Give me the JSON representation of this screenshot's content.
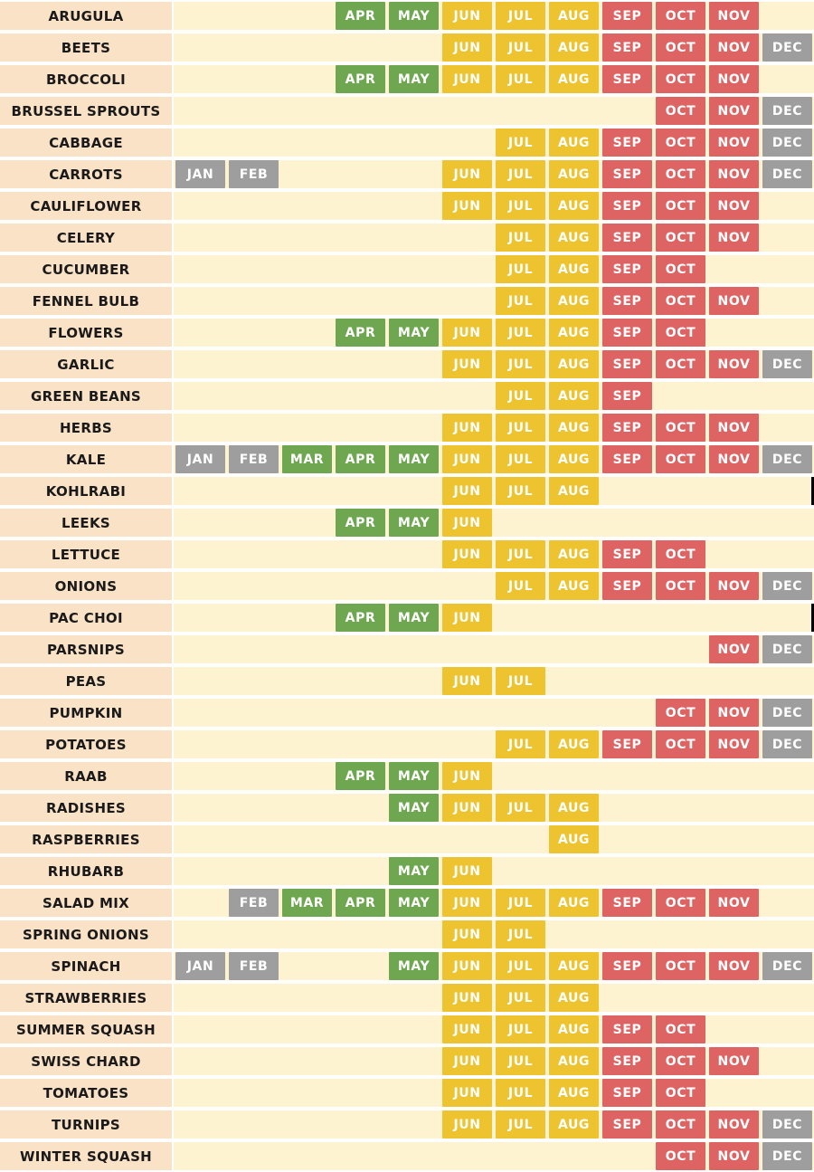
{
  "palette": {
    "page_bg": "#FFFFFF",
    "label_bg": "#FAE2C7",
    "label_text": "#1A1A1A",
    "track_bg": "#FDF3D1",
    "chip_text": "#FFFFFF",
    "winter": "#9E9E9E",
    "spring": "#6FA750",
    "summer": "#EDC32F",
    "fall": "#DE6464",
    "edge_mark": "#000000"
  },
  "chart_data": {
    "type": "heatmap",
    "columns": [
      "JAN",
      "FEB",
      "MAR",
      "APR",
      "MAY",
      "JUN",
      "JUL",
      "AUG",
      "SEP",
      "OCT",
      "NOV",
      "DEC"
    ],
    "column_season": {
      "JAN": "winter",
      "FEB": "winter",
      "MAR": "spring",
      "APR": "spring",
      "MAY": "spring",
      "JUN": "summer",
      "JUL": "summer",
      "AUG": "summer",
      "SEP": "fall",
      "OCT": "fall",
      "NOV": "fall",
      "DEC": "winter"
    },
    "legend_position": "none",
    "grid": false,
    "rows": [
      {
        "label": "ARUGULA",
        "months": [
          "APR",
          "MAY",
          "JUN",
          "JUL",
          "AUG",
          "SEP",
          "OCT",
          "NOV"
        ]
      },
      {
        "label": "BEETS",
        "months": [
          "JUN",
          "JUL",
          "AUG",
          "SEP",
          "OCT",
          "NOV",
          "DEC"
        ]
      },
      {
        "label": "BROCCOLI",
        "months": [
          "APR",
          "MAY",
          "JUN",
          "JUL",
          "AUG",
          "SEP",
          "OCT",
          "NOV"
        ]
      },
      {
        "label": "BRUSSEL SPROUTS",
        "months": [
          "OCT",
          "NOV",
          "DEC"
        ]
      },
      {
        "label": "CABBAGE",
        "months": [
          "JUL",
          "AUG",
          "SEP",
          "OCT",
          "NOV",
          "DEC"
        ]
      },
      {
        "label": "CARROTS",
        "months": [
          "JAN",
          "FEB",
          "JUN",
          "JUL",
          "AUG",
          "SEP",
          "OCT",
          "NOV",
          "DEC"
        ]
      },
      {
        "label": "CAULIFLOWER",
        "months": [
          "JUN",
          "JUL",
          "AUG",
          "SEP",
          "OCT",
          "NOV"
        ]
      },
      {
        "label": "CELERY",
        "months": [
          "JUL",
          "AUG",
          "SEP",
          "OCT",
          "NOV"
        ]
      },
      {
        "label": "CUCUMBER",
        "months": [
          "JUL",
          "AUG",
          "SEP",
          "OCT"
        ]
      },
      {
        "label": "FENNEL BULB",
        "months": [
          "JUL",
          "AUG",
          "SEP",
          "OCT",
          "NOV"
        ]
      },
      {
        "label": "FLOWERS",
        "months": [
          "APR",
          "MAY",
          "JUN",
          "JUL",
          "AUG",
          "SEP",
          "OCT"
        ]
      },
      {
        "label": "GARLIC",
        "months": [
          "JUN",
          "JUL",
          "AUG",
          "SEP",
          "OCT",
          "NOV",
          "DEC"
        ]
      },
      {
        "label": "GREEN BEANS",
        "months": [
          "JUL",
          "AUG",
          "SEP"
        ]
      },
      {
        "label": "HERBS",
        "months": [
          "JUN",
          "JUL",
          "AUG",
          "SEP",
          "OCT",
          "NOV"
        ]
      },
      {
        "label": "KALE",
        "months": [
          "JAN",
          "FEB",
          "MAR",
          "APR",
          "MAY",
          "JUN",
          "JUL",
          "AUG",
          "SEP",
          "OCT",
          "NOV",
          "DEC"
        ]
      },
      {
        "label": "KOHLRABI",
        "months": [
          "JUN",
          "JUL",
          "AUG"
        ]
      },
      {
        "label": "LEEKS",
        "months": [
          "APR",
          "MAY",
          "JUN"
        ]
      },
      {
        "label": "LETTUCE",
        "months": [
          "JUN",
          "JUL",
          "AUG",
          "SEP",
          "OCT"
        ]
      },
      {
        "label": "ONIONS",
        "months": [
          "JUL",
          "AUG",
          "SEP",
          "OCT",
          "NOV",
          "DEC"
        ]
      },
      {
        "label": "PAC CHOI",
        "months": [
          "APR",
          "MAY",
          "JUN"
        ]
      },
      {
        "label": "PARSNIPS",
        "months": [
          "NOV",
          "DEC"
        ]
      },
      {
        "label": "PEAS",
        "months": [
          "JUN",
          "JUL"
        ]
      },
      {
        "label": "PUMPKIN",
        "months": [
          "OCT",
          "NOV",
          "DEC"
        ]
      },
      {
        "label": "POTATOES",
        "months": [
          "JUL",
          "AUG",
          "SEP",
          "OCT",
          "NOV",
          "DEC"
        ]
      },
      {
        "label": "RAAB",
        "months": [
          "APR",
          "MAY",
          "JUN"
        ]
      },
      {
        "label": "RADISHES",
        "months": [
          "MAY",
          "JUN",
          "JUL",
          "AUG"
        ]
      },
      {
        "label": "RASPBERRIES",
        "months": [
          "AUG"
        ]
      },
      {
        "label": "RHUBARB",
        "months": [
          "MAY",
          "JUN"
        ]
      },
      {
        "label": "SALAD MIX",
        "months": [
          "FEB",
          "MAR",
          "APR",
          "MAY",
          "JUN",
          "JUL",
          "AUG",
          "SEP",
          "OCT",
          "NOV"
        ]
      },
      {
        "label": "SPRING ONIONS",
        "months": [
          "JUN",
          "JUL"
        ]
      },
      {
        "label": "SPINACH",
        "months": [
          "JAN",
          "FEB",
          "MAY",
          "JUN",
          "JUL",
          "AUG",
          "SEP",
          "OCT",
          "NOV",
          "DEC"
        ]
      },
      {
        "label": "STRAWBERRIES",
        "months": [
          "JUN",
          "JUL",
          "AUG"
        ]
      },
      {
        "label": "SUMMER SQUASH",
        "months": [
          "JUN",
          "JUL",
          "AUG",
          "SEP",
          "OCT"
        ]
      },
      {
        "label": "SWISS CHARD",
        "months": [
          "JUN",
          "JUL",
          "AUG",
          "SEP",
          "OCT",
          "NOV"
        ]
      },
      {
        "label": "TOMATOES",
        "months": [
          "JUN",
          "JUL",
          "AUG",
          "SEP",
          "OCT"
        ]
      },
      {
        "label": "TURNIPS",
        "months": [
          "JUN",
          "JUL",
          "AUG",
          "SEP",
          "OCT",
          "NOV",
          "DEC"
        ]
      },
      {
        "label": "WINTER SQUASH",
        "months": [
          "OCT",
          "NOV",
          "DEC"
        ]
      }
    ]
  },
  "artifacts": {
    "right_edge_marks": [
      "KOHLRABI",
      "PAC CHOI"
    ]
  }
}
